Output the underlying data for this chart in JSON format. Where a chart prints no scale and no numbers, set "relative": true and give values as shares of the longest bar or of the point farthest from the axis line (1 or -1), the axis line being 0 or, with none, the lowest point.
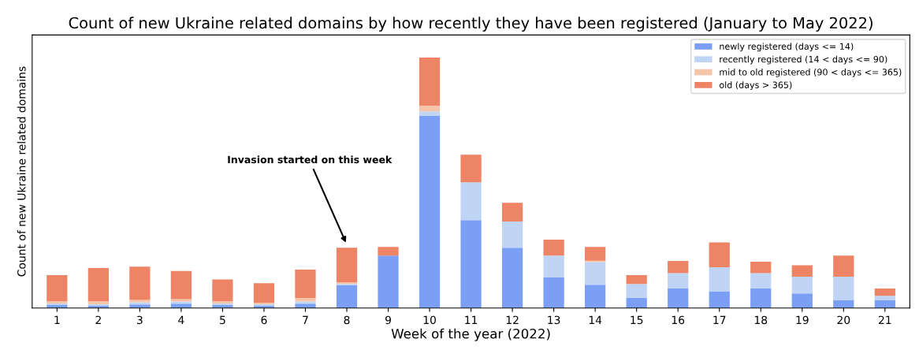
{
  "chart_data": {
    "type": "bar",
    "title": "Count of new Ukraine related domains by how recently they have been registered (January to May 2022)",
    "xlabel": "Week of the year (2022)",
    "ylabel": "Count of new Ukraine related domains",
    "categories": [
      "1",
      "2",
      "3",
      "4",
      "5",
      "6",
      "7",
      "8",
      "9",
      "10",
      "11",
      "12",
      "13",
      "14",
      "15",
      "16",
      "17",
      "18",
      "19",
      "20",
      "21"
    ],
    "stacked": true,
    "relative": true,
    "legend": "top right",
    "grid": false,
    "series": [
      {
        "name": "newly registered (days <= 14)",
        "color": "#7b9ff5",
        "values": [
          0.012,
          0.009,
          0.014,
          0.017,
          0.012,
          0.009,
          0.017,
          0.09,
          0.209,
          0.768,
          0.351,
          0.241,
          0.122,
          0.093,
          0.041,
          0.078,
          0.067,
          0.078,
          0.058,
          0.032,
          0.032
        ]
      },
      {
        "name": "recently registered (14 < days <= 90)",
        "color": "#c0d4f5",
        "values": [
          0.006,
          0.006,
          0.009,
          0.009,
          0.006,
          0.006,
          0.009,
          0.006,
          0,
          0.017,
          0.151,
          0.104,
          0.087,
          0.09,
          0.055,
          0.061,
          0.096,
          0.061,
          0.067,
          0.093,
          0.017
        ]
      },
      {
        "name": "mid to old registered (90 < days <= 365)",
        "color": "#f6c4a9",
        "values": [
          0.009,
          0.012,
          0.009,
          0.009,
          0.009,
          0.006,
          0.014,
          0.006,
          0,
          0.023,
          0,
          0,
          0,
          0.006,
          0,
          0,
          0,
          0,
          0,
          0,
          0
        ]
      },
      {
        "name": "old (days > 365)",
        "color": "#ee8466",
        "values": [
          0.104,
          0.133,
          0.133,
          0.113,
          0.087,
          0.078,
          0.113,
          0.139,
          0.035,
          0.192,
          0.11,
          0.075,
          0.064,
          0.055,
          0.035,
          0.049,
          0.099,
          0.046,
          0.046,
          0.084,
          0.029
        ]
      }
    ],
    "annotations": [
      {
        "text": "Invasion started on this week",
        "x": "8",
        "y": 0.241
      }
    ]
  }
}
